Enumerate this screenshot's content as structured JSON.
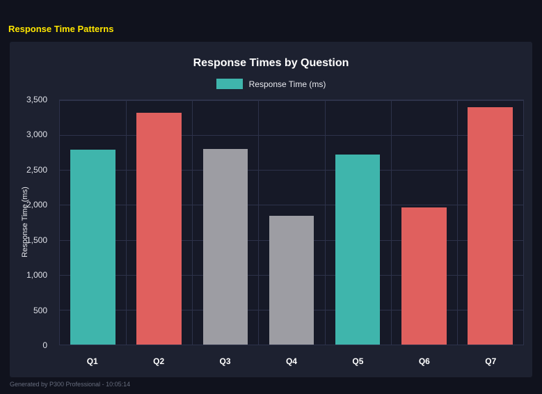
{
  "page": {
    "title": "Response Time Patterns",
    "footer": "Generated by P300 Professional - 10:05:14"
  },
  "chart_data": {
    "type": "bar",
    "title": "Response Times by Question",
    "legend": {
      "label": "Response Time (ms)",
      "color": "#3fb5ac"
    },
    "categories": [
      "Q1",
      "Q2",
      "Q3",
      "Q4",
      "Q5",
      "Q6",
      "Q7"
    ],
    "values": [
      2790,
      3320,
      2800,
      1840,
      2720,
      1960,
      3400
    ],
    "bar_colors": [
      "#3fb5ac",
      "#e0605e",
      "#9d9da3",
      "#9d9da3",
      "#3fb5ac",
      "#e0605e",
      "#e0605e"
    ],
    "xlabel": "",
    "ylabel": "Response Time (ms)",
    "ylim": [
      0,
      3500
    ],
    "yticks": [
      0,
      500,
      1000,
      1500,
      2000,
      2500,
      3000,
      3500
    ],
    "ytick_labels": [
      "0",
      "500",
      "1,000",
      "1,500",
      "2,000",
      "2,500",
      "3,000",
      "3,500"
    ],
    "grid": true,
    "legend_position": "top",
    "colors_meaning": {
      "teal": "#3fb5ac",
      "red": "#e0605e",
      "gray": "#9d9da3"
    }
  }
}
